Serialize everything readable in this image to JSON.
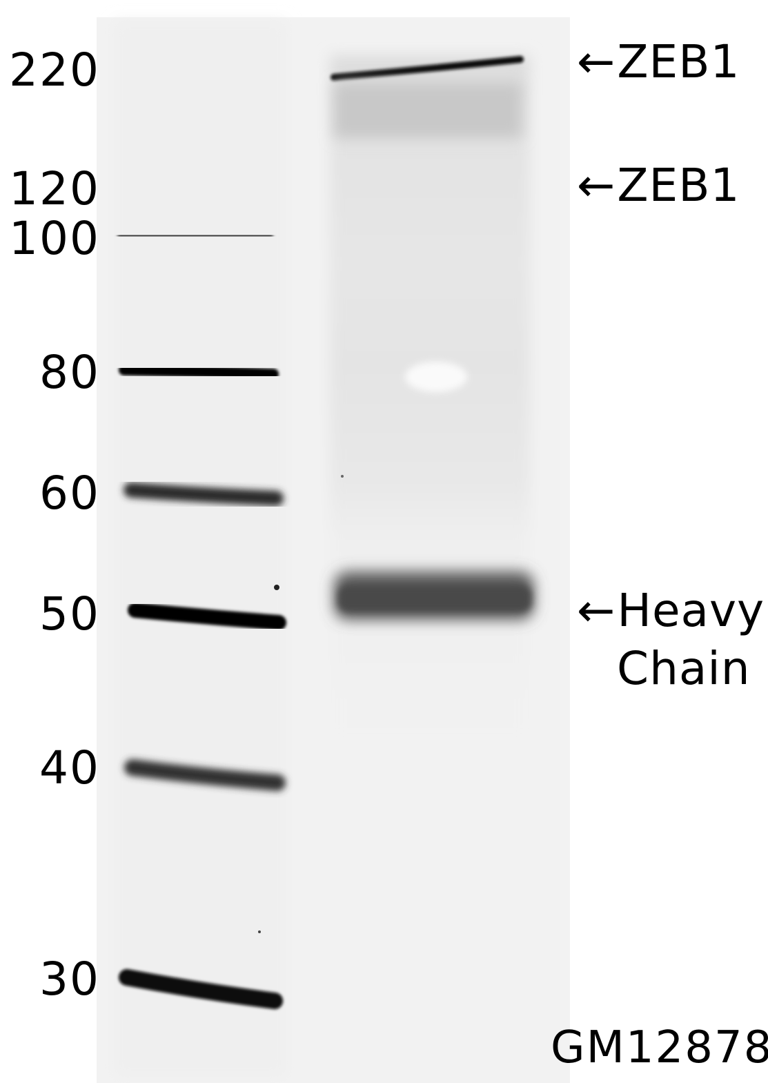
{
  "markers": [
    {
      "label": "220"
    },
    {
      "label": "120"
    },
    {
      "label": "100"
    },
    {
      "label": "80"
    },
    {
      "label": "60"
    },
    {
      "label": "50"
    },
    {
      "label": "40"
    },
    {
      "label": "30"
    }
  ],
  "annotations": {
    "arrow": "←",
    "zeb1_upper": "ZEB1",
    "zeb1_lower": "ZEB1",
    "heavy_line1": "Heavy",
    "heavy_line2": "Chain"
  },
  "sample": {
    "label": "GM12878"
  }
}
